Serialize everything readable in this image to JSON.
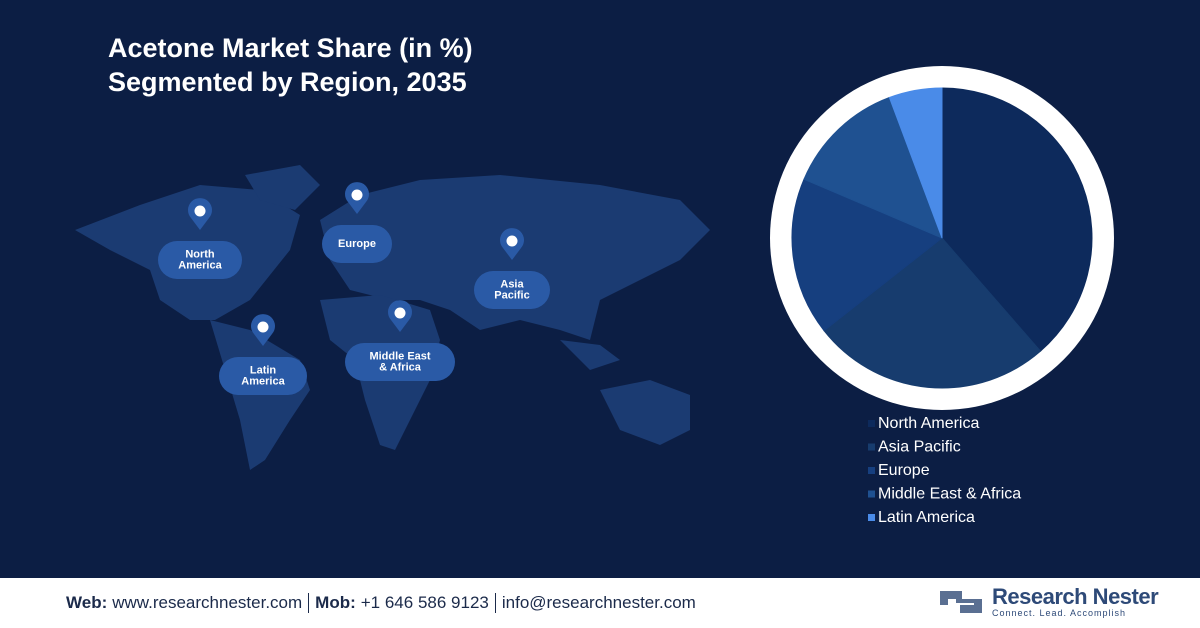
{
  "chart_data": {
    "type": "pie",
    "title": "Acetone Market Share (in %)",
    "subtitle": "Segmented by Region, 2035",
    "categories": [
      "North America",
      "Asia Pacific",
      "Europe",
      "Middle East & Africa",
      "Latin America"
    ],
    "values": [
      38.6,
      25.8,
      17,
      12.9,
      5.7
    ],
    "colors": [
      "#0d2a5c",
      "#173c6e",
      "#163f7f",
      "#1f5191",
      "#4a8be8"
    ],
    "legend": "bottom-right"
  },
  "map": {
    "labels": [
      "North America",
      "Europe",
      "Asia Pacific",
      "Latin America",
      "Middle East & Africa"
    ]
  },
  "footer": {
    "web_label": "Web:",
    "web": "www.researchnester.com",
    "mob_label": "Mob:",
    "mob": "+1 646 586 9123",
    "email": "info@researchnester.com"
  },
  "logo": {
    "name": "Research Nester",
    "tagline": "Connect. Lead. Accomplish"
  }
}
